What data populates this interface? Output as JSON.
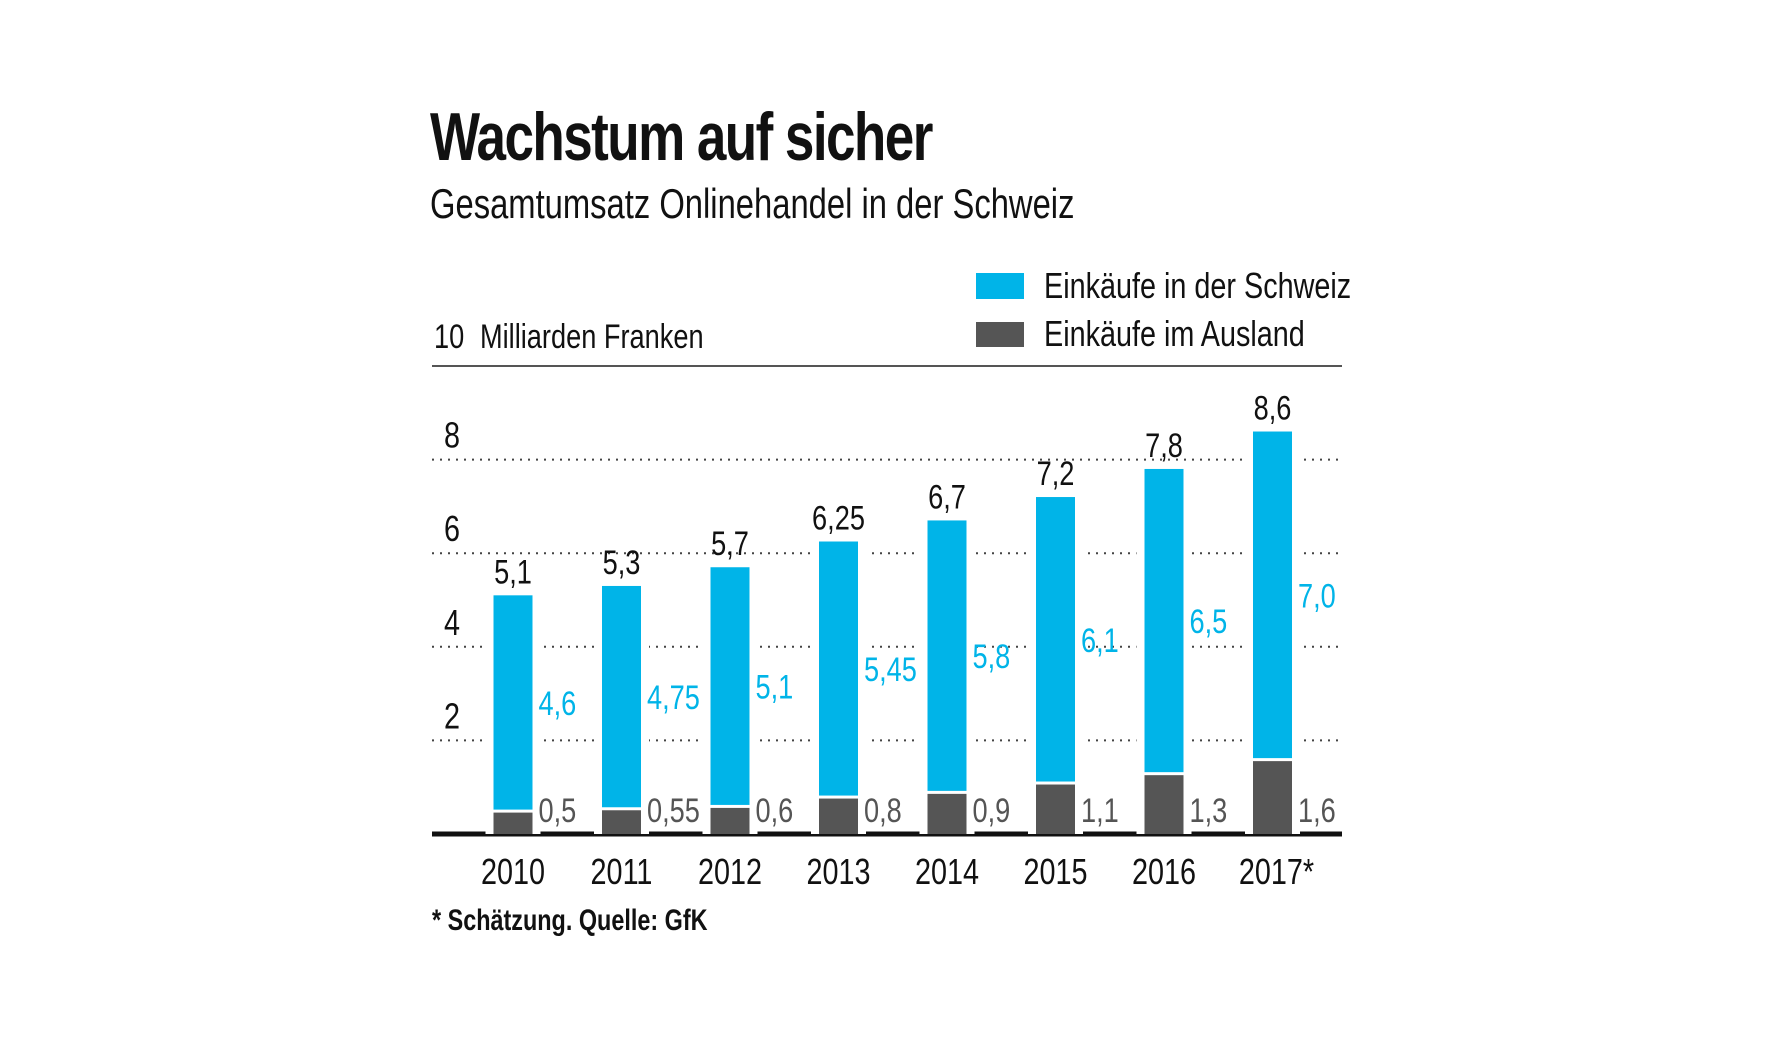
{
  "colors": {
    "schweiz": "#00b4e8",
    "ausland": "#555555",
    "text": "#111111"
  },
  "chart_data": {
    "type": "bar",
    "stacked": true,
    "title": "Wachstum auf sicher",
    "subtitle": "Gesamtumsatz Onlinehandel in der Schweiz",
    "ylabel": "Milliarden Franken",
    "ylim": [
      0,
      10
    ],
    "yticks": [
      "2",
      "4",
      "6",
      "8",
      "10"
    ],
    "grid": true,
    "legend_position": "top-right",
    "categories": [
      "2010",
      "2011",
      "2012",
      "2013",
      "2014",
      "2015",
      "2016",
      "2017*"
    ],
    "series": [
      {
        "name": "Einkäufe im Ausland",
        "values": [
          0.5,
          0.55,
          0.6,
          0.8,
          0.9,
          1.1,
          1.3,
          1.6
        ],
        "labels": [
          "0,5",
          "0,55",
          "0,6",
          "0,8",
          "0,9",
          "1,1",
          "1,3",
          "1,6"
        ]
      },
      {
        "name": "Einkäufe in der Schweiz",
        "values": [
          4.6,
          4.75,
          5.1,
          5.45,
          5.8,
          6.1,
          6.5,
          7.0
        ],
        "labels": [
          "4,6",
          "4,75",
          "5,1",
          "5,45",
          "5,8",
          "6,1",
          "6,5",
          "7,0"
        ]
      }
    ],
    "totals": [
      5.1,
      5.3,
      5.7,
      6.25,
      6.7,
      7.2,
      7.8,
      8.6
    ],
    "total_labels": [
      "5,1",
      "5,3",
      "5,7",
      "6,25",
      "6,7",
      "7,2",
      "7,8",
      "8,6"
    ],
    "footnote": "* Schätzung. Quelle: GfK"
  }
}
